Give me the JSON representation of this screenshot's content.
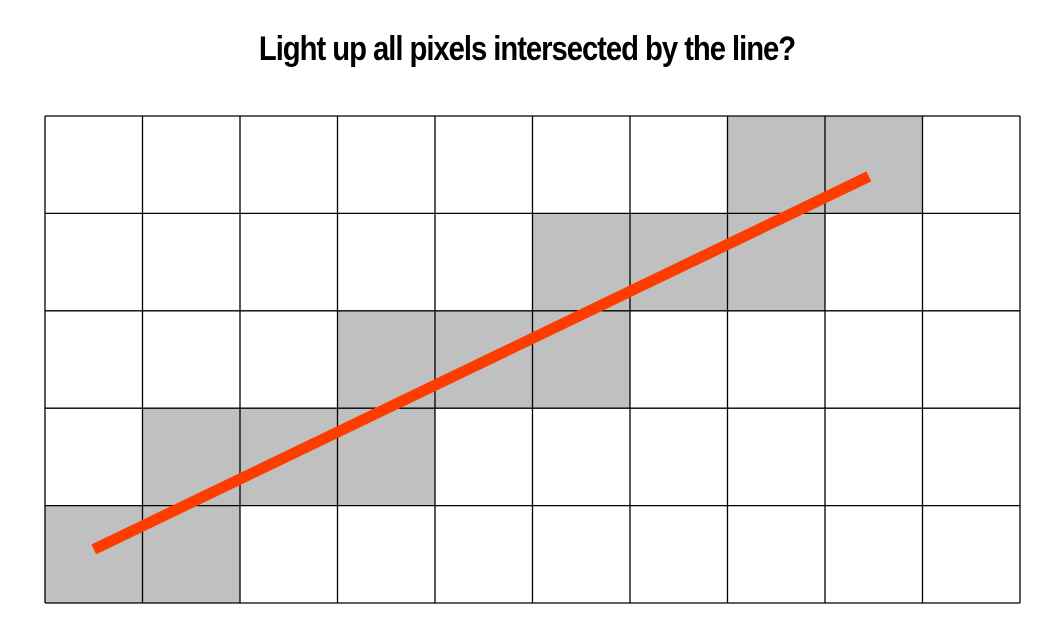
{
  "slide": {
    "title": "Light up all pixels intersected by the line?"
  },
  "grid": {
    "columns": 10,
    "rows": 5,
    "cell_fill_empty": "#ffffff",
    "cell_fill_lit": "#c0c0c0",
    "grid_line_color": "#000000",
    "lit_cells": [
      [
        0,
        4
      ],
      [
        1,
        4
      ],
      [
        1,
        3
      ],
      [
        2,
        3
      ],
      [
        3,
        3
      ],
      [
        3,
        2
      ],
      [
        4,
        2
      ],
      [
        5,
        2
      ],
      [
        5,
        1
      ],
      [
        6,
        1
      ],
      [
        7,
        1
      ],
      [
        7,
        0
      ],
      [
        8,
        0
      ]
    ]
  },
  "line": {
    "color": "#ff3c00",
    "start": [
      0.5,
      4.45
    ],
    "end": [
      8.45,
      0.62
    ]
  }
}
